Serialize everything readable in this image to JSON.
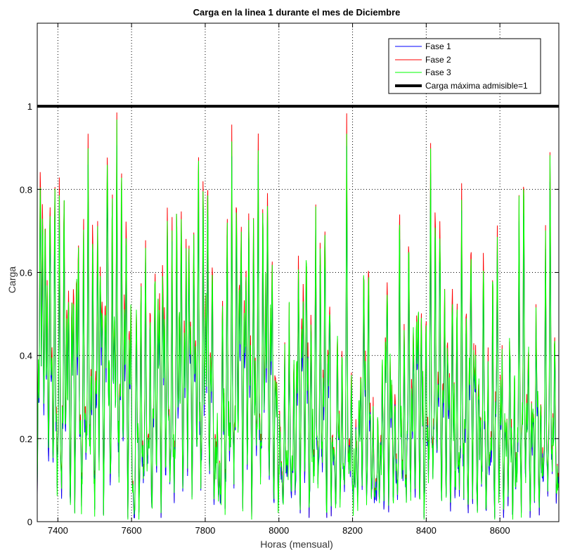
{
  "chart_data": {
    "type": "line",
    "title": "Carga en la linea 1 durante el mes de Diciembre",
    "xlabel": "Horas (mensual)",
    "ylabel": "Carga",
    "xlim": [
      7344,
      8760
    ],
    "ylim": [
      0,
      1.2
    ],
    "x_ticks": [
      7400,
      7600,
      7800,
      8000,
      8200,
      8400,
      8600
    ],
    "y_ticks": [
      0,
      0.2,
      0.4,
      0.6,
      0.8,
      1
    ],
    "y_tick_labels": [
      "0",
      "0.2",
      "0.4",
      "0.6",
      "0.8",
      "1"
    ],
    "grid": true,
    "legend_position": "top-right",
    "reference_line": {
      "name": "Carga máxima admisible=1",
      "y": 1,
      "color": "#000000"
    },
    "series": [
      {
        "name": "Fase 1",
        "color": "#0000ff"
      },
      {
        "name": "Fase 2",
        "color": "#ff0000"
      },
      {
        "name": "Fase 3",
        "color": "#00ff00"
      }
    ],
    "hourly_values_note_x_start": 7344,
    "hourly_points": [
      [
        7344,
        0.08
      ],
      [
        7350,
        0.78
      ],
      [
        7356,
        0.92
      ],
      [
        7362,
        0.55
      ],
      [
        7368,
        0.86
      ],
      [
        7374,
        0.3
      ],
      [
        7380,
        0.94
      ],
      [
        7386,
        0.2
      ],
      [
        7392,
        0.88
      ],
      [
        7398,
        0.1
      ],
      [
        7404,
        0.85
      ],
      [
        7410,
        0.07
      ],
      [
        7416,
        0.83
      ],
      [
        7422,
        0.4
      ],
      [
        7428,
        0.76
      ],
      [
        7434,
        0.05
      ],
      [
        7440,
        0.9
      ],
      [
        7446,
        0.12
      ],
      [
        7452,
        0.82
      ],
      [
        7458,
        0.6
      ],
      [
        7464,
        0.04
      ],
      [
        7470,
        0.79
      ],
      [
        7476,
        0.15
      ],
      [
        7482,
        0.95
      ],
      [
        7488,
        0.22
      ],
      [
        7494,
        0.81
      ],
      [
        7500,
        0.06
      ],
      [
        7506,
        0.88
      ],
      [
        7512,
        0.35
      ],
      [
        7518,
        0.93
      ],
      [
        7524,
        0.08
      ],
      [
        7530,
        0.77
      ],
      [
        7536,
        0.96
      ],
      [
        7542,
        0.1
      ],
      [
        7548,
        0.86
      ],
      [
        7554,
        0.45
      ],
      [
        7560,
        0.97
      ],
      [
        7566,
        0.14
      ],
      [
        7572,
        0.91
      ],
      [
        7578,
        0.3
      ],
      [
        7584,
        0.97
      ],
      [
        7590,
        0.05
      ],
      [
        7596,
        0.8
      ],
      [
        7602,
        0.15
      ],
      [
        7608,
        0.02
      ],
      [
        7614,
        0.68
      ],
      [
        7620,
        0.03
      ],
      [
        7626,
        0.62
      ],
      [
        7632,
        0.08
      ],
      [
        7638,
        0.7
      ],
      [
        7644,
        0.12
      ],
      [
        7650,
        0.57
      ],
      [
        7656,
        0.04
      ],
      [
        7662,
        0.75
      ],
      [
        7668,
        0.18
      ],
      [
        7674,
        0.88
      ],
      [
        7680,
        0.06
      ],
      [
        7686,
        0.92
      ],
      [
        7692,
        0.2
      ],
      [
        7698,
        0.85
      ],
      [
        7704,
        0.1
      ],
      [
        7710,
        0.78
      ],
      [
        7716,
        0.05
      ],
      [
        7722,
        0.82
      ],
      [
        7728,
        0.4
      ],
      [
        7734,
        0.93
      ],
      [
        7740,
        0.12
      ],
      [
        7746,
        0.87
      ],
      [
        7752,
        0.3
      ],
      [
        7758,
        0.95
      ],
      [
        7764,
        0.08
      ],
      [
        7770,
        0.9
      ],
      [
        7776,
        0.25
      ],
      [
        7782,
        0.93
      ],
      [
        7788,
        0.1
      ],
      [
        7794,
        0.85
      ],
      [
        7800,
        0.5
      ],
      [
        7806,
        0.94
      ],
      [
        7812,
        0.15
      ],
      [
        7818,
        0.88
      ],
      [
        7824,
        0.04
      ],
      [
        7830,
        0.35
      ],
      [
        7836,
        0.16
      ],
      [
        7842,
        0.1
      ],
      [
        7848,
        0.7
      ],
      [
        7854,
        0.05
      ],
      [
        7860,
        0.82
      ],
      [
        7866,
        0.15
      ],
      [
        7872,
        0.93
      ],
      [
        7878,
        0.08
      ],
      [
        7884,
        0.86
      ],
      [
        7890,
        0.4
      ],
      [
        7896,
        0.96
      ],
      [
        7902,
        0.12
      ],
      [
        7908,
        0.89
      ],
      [
        7914,
        0.3
      ],
      [
        7920,
        0.93
      ],
      [
        7926,
        0.06
      ],
      [
        7932,
        0.85
      ],
      [
        7938,
        0.2
      ],
      [
        7944,
        0.92
      ],
      [
        7950,
        0.1
      ],
      [
        7956,
        0.78
      ],
      [
        7962,
        0.45
      ],
      [
        7968,
        0.95
      ],
      [
        7974,
        0.15
      ],
      [
        7980,
        0.97
      ],
      [
        7986,
        0.05
      ],
      [
        7992,
        0.6
      ],
      [
        7998,
        0.1
      ],
      [
        8004,
        0.3
      ],
      [
        8010,
        0.04
      ],
      [
        8016,
        0.45
      ],
      [
        8022,
        0.1
      ],
      [
        8028,
        0.55
      ],
      [
        8034,
        0.03
      ],
      [
        8040,
        0.4
      ],
      [
        8046,
        0.15
      ],
      [
        8052,
        0.85
      ],
      [
        8058,
        0.06
      ],
      [
        8064,
        0.9
      ],
      [
        8070,
        0.2
      ],
      [
        8076,
        0.88
      ],
      [
        8082,
        0.05
      ],
      [
        8088,
        0.62
      ],
      [
        8094,
        0.12
      ],
      [
        8100,
        0.78
      ],
      [
        8106,
        0.08
      ],
      [
        8112,
        0.7
      ],
      [
        8118,
        0.15
      ],
      [
        8124,
        0.9
      ],
      [
        8130,
        0.05
      ],
      [
        8136,
        0.82
      ],
      [
        8142,
        0.1
      ],
      [
        8148,
        0.35
      ],
      [
        8154,
        0.03
      ],
      [
        8160,
        0.6
      ],
      [
        8166,
        0.1
      ],
      [
        8172,
        0.45
      ],
      [
        8178,
        0.05
      ],
      [
        8184,
        0.95
      ],
      [
        8190,
        0.12
      ],
      [
        8196,
        0.4
      ],
      [
        8202,
        0.04
      ],
      [
        8208,
        0.3
      ],
      [
        8214,
        0.08
      ],
      [
        8220,
        0.55
      ],
      [
        8226,
        0.15
      ],
      [
        8232,
        0.85
      ],
      [
        8238,
        0.05
      ],
      [
        8244,
        0.7
      ],
      [
        8250,
        0.12
      ],
      [
        8256,
        0.3
      ],
      [
        8262,
        0.04
      ],
      [
        8268,
        0.25
      ],
      [
        8274,
        0.12
      ],
      [
        8280,
        0.45
      ],
      [
        8286,
        0.08
      ],
      [
        8292,
        0.92
      ],
      [
        8298,
        0.05
      ],
      [
        8304,
        0.6
      ],
      [
        8310,
        0.1
      ],
      [
        8316,
        0.4
      ],
      [
        8322,
        0.03
      ],
      [
        8328,
        0.8
      ],
      [
        8334,
        0.12
      ],
      [
        8340,
        0.5
      ],
      [
        8346,
        0.05
      ],
      [
        8352,
        0.75
      ],
      [
        8358,
        0.15
      ],
      [
        8364,
        0.65
      ],
      [
        8370,
        0.06
      ],
      [
        8376,
        0.85
      ],
      [
        8382,
        0.1
      ],
      [
        8388,
        0.7
      ],
      [
        8394,
        0.04
      ],
      [
        8400,
        0.6
      ],
      [
        8406,
        0.12
      ],
      [
        8412,
        0.93
      ],
      [
        8418,
        0.08
      ],
      [
        8424,
        0.8
      ],
      [
        8430,
        0.2
      ],
      [
        8436,
        0.88
      ],
      [
        8442,
        0.05
      ],
      [
        8448,
        0.75
      ],
      [
        8454,
        0.15
      ],
      [
        8460,
        0.65
      ],
      [
        8466,
        0.04
      ],
      [
        8472,
        0.7
      ],
      [
        8478,
        0.12
      ],
      [
        8484,
        0.55
      ],
      [
        8490,
        0.03
      ],
      [
        8496,
        0.85
      ],
      [
        8502,
        0.1
      ],
      [
        8508,
        0.6
      ],
      [
        8514,
        0.05
      ],
      [
        8520,
        0.9
      ],
      [
        8526,
        0.15
      ],
      [
        8532,
        0.7
      ],
      [
        8538,
        0.06
      ],
      [
        8544,
        0.5
      ],
      [
        8550,
        0.1
      ],
      [
        8556,
        0.75
      ],
      [
        8562,
        0.04
      ],
      [
        8568,
        0.4
      ],
      [
        8574,
        0.12
      ],
      [
        8580,
        0.65
      ],
      [
        8586,
        0.05
      ],
      [
        8592,
        0.85
      ],
      [
        8598,
        0.1
      ],
      [
        8604,
        0.6
      ],
      [
        8610,
        0.03
      ],
      [
        8616,
        0.45
      ],
      [
        8622,
        0.12
      ],
      [
        8628,
        0.55
      ],
      [
        8634,
        0.06
      ],
      [
        8640,
        0.35
      ],
      [
        8646,
        0.1
      ],
      [
        8652,
        0.75
      ],
      [
        8658,
        0.04
      ],
      [
        8664,
        0.95
      ],
      [
        8670,
        0.15
      ],
      [
        8676,
        0.6
      ],
      [
        8682,
        0.05
      ],
      [
        8688,
        0.45
      ],
      [
        8694,
        0.12
      ],
      [
        8700,
        0.7
      ],
      [
        8706,
        0.04
      ],
      [
        8712,
        0.35
      ],
      [
        8718,
        0.1
      ],
      [
        8724,
        0.7
      ],
      [
        8730,
        0.05
      ],
      [
        8736,
        0.92
      ],
      [
        8742,
        0.12
      ],
      [
        8748,
        0.55
      ],
      [
        8754,
        0.08
      ],
      [
        8760,
        0.2
      ]
    ]
  }
}
